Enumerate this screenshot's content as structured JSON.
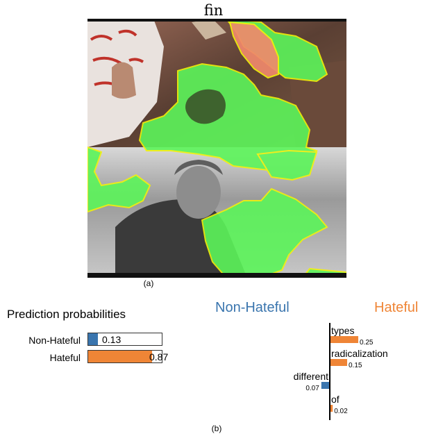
{
  "figure": {
    "image_title": "fin",
    "caption_a": "(a)",
    "caption_b": "(b)"
  },
  "colors": {
    "non_hateful": "#3a75ae",
    "hateful": "#ef8536",
    "mask_green": "#5cf55a",
    "mask_outline": "#f2f20a",
    "mask_salmon": "#f0896c"
  },
  "chart_data": [
    {
      "type": "bar",
      "title": "Prediction probabilities",
      "orientation": "horizontal",
      "categories": [
        "Non-Hateful",
        "Hateful"
      ],
      "values": [
        0.13,
        0.87
      ],
      "value_labels": [
        "0.13",
        "0.87"
      ],
      "colors": [
        "#3a75ae",
        "#ef8536"
      ],
      "xlim": [
        0,
        1
      ]
    },
    {
      "type": "bar",
      "orientation": "horizontal",
      "class_labels": {
        "negative": "Non-Hateful",
        "positive": "Hateful"
      },
      "features": [
        {
          "word": "types",
          "weight": 0.25,
          "value_label": "0.25",
          "class": "Hateful"
        },
        {
          "word": "radicalization",
          "weight": 0.15,
          "value_label": "0.15",
          "class": "Hateful"
        },
        {
          "word": "different",
          "weight": -0.07,
          "value_label": "0.07",
          "class": "Non-Hateful"
        },
        {
          "word": "of",
          "weight": 0.02,
          "value_label": "0.02",
          "class": "Hateful"
        }
      ]
    }
  ]
}
